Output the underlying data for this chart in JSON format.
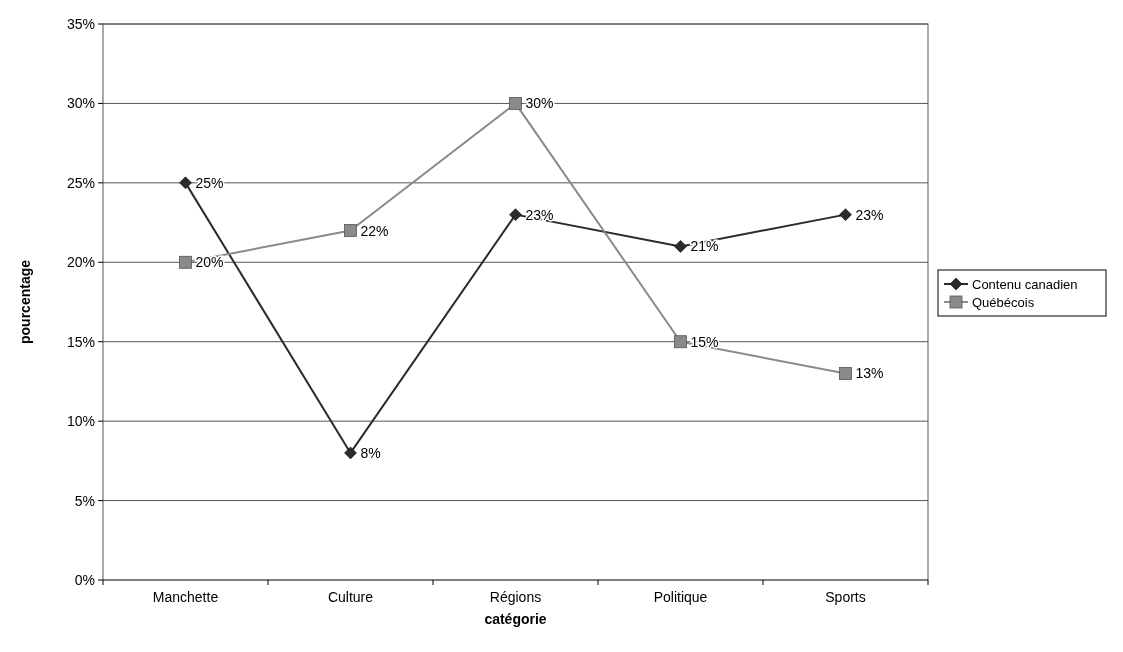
{
  "chart_data": {
    "type": "line",
    "xlabel": "catégorie",
    "ylabel": "pourcentage",
    "categories": [
      "Manchette",
      "Culture",
      "Régions",
      "Politique",
      "Sports"
    ],
    "series": [
      {
        "name": "Contenu canadien",
        "color": "#2b2b2b",
        "marker": "diamond",
        "values": [
          25,
          8,
          23,
          21,
          23
        ],
        "value_labels": [
          "25%",
          "8%",
          "23%",
          "21%",
          "23%"
        ]
      },
      {
        "name": "Québécois",
        "color": "#8a8a8a",
        "marker": "square",
        "values": [
          20,
          22,
          30,
          15,
          13
        ],
        "value_labels": [
          "20%",
          "22%",
          "30%",
          "15%",
          "13%"
        ]
      }
    ],
    "ylim": [
      0,
      35
    ],
    "yticks": [
      {
        "value": 0,
        "label": "0%"
      },
      {
        "value": 5,
        "label": "5%"
      },
      {
        "value": 10,
        "label": "10%"
      },
      {
        "value": 15,
        "label": "15%"
      },
      {
        "value": 20,
        "label": "20%"
      },
      {
        "value": 25,
        "label": "25%"
      },
      {
        "value": 30,
        "label": "30%"
      },
      {
        "value": 35,
        "label": "35%"
      }
    ],
    "grid": "y",
    "legend": "right",
    "line_style": "solid"
  }
}
